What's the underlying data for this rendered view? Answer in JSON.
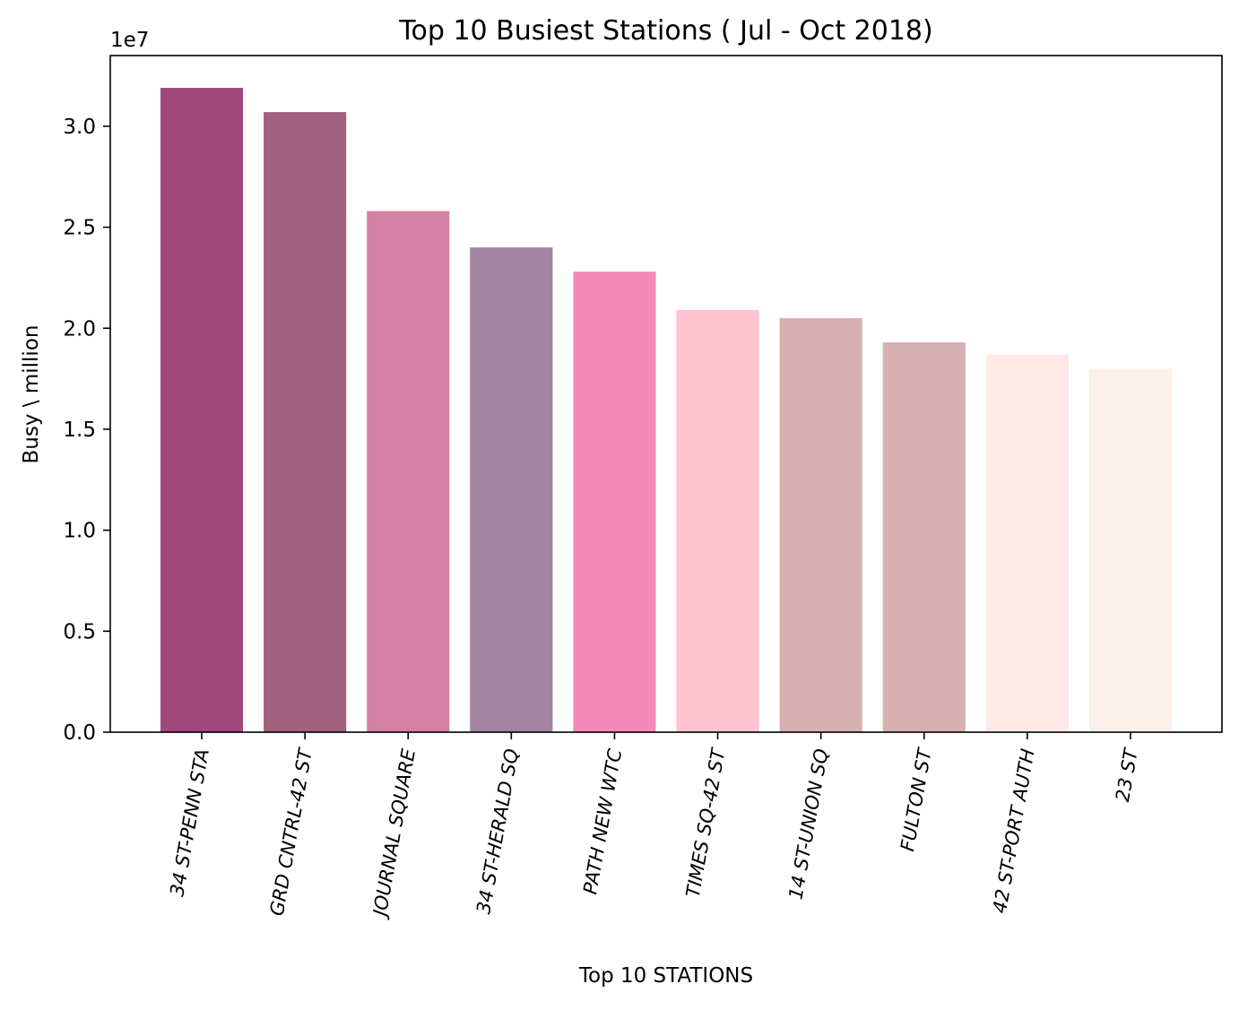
{
  "chart_data": {
    "type": "bar",
    "title": "Top 10 Busiest Stations ( Jul - Oct 2018)",
    "xlabel": "Top 10 STATIONS",
    "ylabel": "Busy \\ million",
    "y_offset_label": "1e7",
    "ylim": [
      0,
      33500000
    ],
    "yticks": [
      0,
      5000000,
      10000000,
      15000000,
      20000000,
      25000000,
      30000000
    ],
    "ytick_labels": [
      "0.0",
      "0.5",
      "1.0",
      "1.5",
      "2.0",
      "2.5",
      "3.0"
    ],
    "categories": [
      "34 ST-PENN STA",
      "GRD CNTRL-42 ST",
      "JOURNAL SQUARE",
      "34 ST-HERALD SQ",
      "PATH NEW WTC",
      "TIMES SQ-42 ST",
      "14 ST-UNION SQ",
      "FULTON ST",
      "42 ST-PORT AUTH",
      "23 ST"
    ],
    "values": [
      31900000,
      30700000,
      25800000,
      24000000,
      22800000,
      20900000,
      20500000,
      19300000,
      18700000,
      18000000
    ],
    "colors": [
      "#a0477e",
      "#a0607e",
      "#d57fa5",
      "#a283a1",
      "#f28ab8",
      "#ffc2cf",
      "#d7b0b1",
      "#d7b0b1",
      "#fee9e6",
      "#fbf0ea"
    ],
    "xtick_rotation_deg": -80,
    "grid": false,
    "legend": "none"
  }
}
